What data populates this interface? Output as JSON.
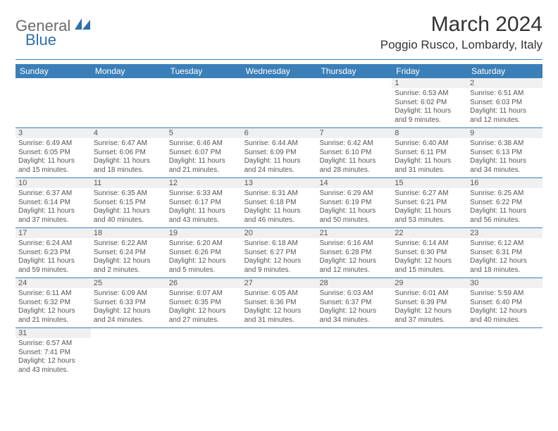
{
  "logo": {
    "part1": "General",
    "part2": "Blue"
  },
  "title": "March 2024",
  "location": "Poggio Rusco, Lombardy, Italy",
  "colors": {
    "header_bg": "#3b7fb8",
    "header_text": "#ffffff",
    "daynum_bg": "#f0f0f0",
    "rule": "#3b7fb8",
    "text": "#555555",
    "logo_grey": "#6b6b6b",
    "logo_blue": "#2f6fa8"
  },
  "typography": {
    "title_fontsize": 30,
    "location_fontsize": 17,
    "dayhead_fontsize": 12,
    "body_fontsize": 10,
    "daynum_fontsize": 11
  },
  "day_headers": [
    "Sunday",
    "Monday",
    "Tuesday",
    "Wednesday",
    "Thursday",
    "Friday",
    "Saturday"
  ],
  "weeks": [
    [
      {
        "n": "",
        "sunrise": "",
        "sunset": "",
        "daylight": ""
      },
      {
        "n": "",
        "sunrise": "",
        "sunset": "",
        "daylight": ""
      },
      {
        "n": "",
        "sunrise": "",
        "sunset": "",
        "daylight": ""
      },
      {
        "n": "",
        "sunrise": "",
        "sunset": "",
        "daylight": ""
      },
      {
        "n": "",
        "sunrise": "",
        "sunset": "",
        "daylight": ""
      },
      {
        "n": "1",
        "sunrise": "Sunrise: 6:53 AM",
        "sunset": "Sunset: 6:02 PM",
        "daylight": "Daylight: 11 hours and 9 minutes."
      },
      {
        "n": "2",
        "sunrise": "Sunrise: 6:51 AM",
        "sunset": "Sunset: 6:03 PM",
        "daylight": "Daylight: 11 hours and 12 minutes."
      }
    ],
    [
      {
        "n": "3",
        "sunrise": "Sunrise: 6:49 AM",
        "sunset": "Sunset: 6:05 PM",
        "daylight": "Daylight: 11 hours and 15 minutes."
      },
      {
        "n": "4",
        "sunrise": "Sunrise: 6:47 AM",
        "sunset": "Sunset: 6:06 PM",
        "daylight": "Daylight: 11 hours and 18 minutes."
      },
      {
        "n": "5",
        "sunrise": "Sunrise: 6:46 AM",
        "sunset": "Sunset: 6:07 PM",
        "daylight": "Daylight: 11 hours and 21 minutes."
      },
      {
        "n": "6",
        "sunrise": "Sunrise: 6:44 AM",
        "sunset": "Sunset: 6:09 PM",
        "daylight": "Daylight: 11 hours and 24 minutes."
      },
      {
        "n": "7",
        "sunrise": "Sunrise: 6:42 AM",
        "sunset": "Sunset: 6:10 PM",
        "daylight": "Daylight: 11 hours and 28 minutes."
      },
      {
        "n": "8",
        "sunrise": "Sunrise: 6:40 AM",
        "sunset": "Sunset: 6:11 PM",
        "daylight": "Daylight: 11 hours and 31 minutes."
      },
      {
        "n": "9",
        "sunrise": "Sunrise: 6:38 AM",
        "sunset": "Sunset: 6:13 PM",
        "daylight": "Daylight: 11 hours and 34 minutes."
      }
    ],
    [
      {
        "n": "10",
        "sunrise": "Sunrise: 6:37 AM",
        "sunset": "Sunset: 6:14 PM",
        "daylight": "Daylight: 11 hours and 37 minutes."
      },
      {
        "n": "11",
        "sunrise": "Sunrise: 6:35 AM",
        "sunset": "Sunset: 6:15 PM",
        "daylight": "Daylight: 11 hours and 40 minutes."
      },
      {
        "n": "12",
        "sunrise": "Sunrise: 6:33 AM",
        "sunset": "Sunset: 6:17 PM",
        "daylight": "Daylight: 11 hours and 43 minutes."
      },
      {
        "n": "13",
        "sunrise": "Sunrise: 6:31 AM",
        "sunset": "Sunset: 6:18 PM",
        "daylight": "Daylight: 11 hours and 46 minutes."
      },
      {
        "n": "14",
        "sunrise": "Sunrise: 6:29 AM",
        "sunset": "Sunset: 6:19 PM",
        "daylight": "Daylight: 11 hours and 50 minutes."
      },
      {
        "n": "15",
        "sunrise": "Sunrise: 6:27 AM",
        "sunset": "Sunset: 6:21 PM",
        "daylight": "Daylight: 11 hours and 53 minutes."
      },
      {
        "n": "16",
        "sunrise": "Sunrise: 6:25 AM",
        "sunset": "Sunset: 6:22 PM",
        "daylight": "Daylight: 11 hours and 56 minutes."
      }
    ],
    [
      {
        "n": "17",
        "sunrise": "Sunrise: 6:24 AM",
        "sunset": "Sunset: 6:23 PM",
        "daylight": "Daylight: 11 hours and 59 minutes."
      },
      {
        "n": "18",
        "sunrise": "Sunrise: 6:22 AM",
        "sunset": "Sunset: 6:24 PM",
        "daylight": "Daylight: 12 hours and 2 minutes."
      },
      {
        "n": "19",
        "sunrise": "Sunrise: 6:20 AM",
        "sunset": "Sunset: 6:26 PM",
        "daylight": "Daylight: 12 hours and 5 minutes."
      },
      {
        "n": "20",
        "sunrise": "Sunrise: 6:18 AM",
        "sunset": "Sunset: 6:27 PM",
        "daylight": "Daylight: 12 hours and 9 minutes."
      },
      {
        "n": "21",
        "sunrise": "Sunrise: 6:16 AM",
        "sunset": "Sunset: 6:28 PM",
        "daylight": "Daylight: 12 hours and 12 minutes."
      },
      {
        "n": "22",
        "sunrise": "Sunrise: 6:14 AM",
        "sunset": "Sunset: 6:30 PM",
        "daylight": "Daylight: 12 hours and 15 minutes."
      },
      {
        "n": "23",
        "sunrise": "Sunrise: 6:12 AM",
        "sunset": "Sunset: 6:31 PM",
        "daylight": "Daylight: 12 hours and 18 minutes."
      }
    ],
    [
      {
        "n": "24",
        "sunrise": "Sunrise: 6:11 AM",
        "sunset": "Sunset: 6:32 PM",
        "daylight": "Daylight: 12 hours and 21 minutes."
      },
      {
        "n": "25",
        "sunrise": "Sunrise: 6:09 AM",
        "sunset": "Sunset: 6:33 PM",
        "daylight": "Daylight: 12 hours and 24 minutes."
      },
      {
        "n": "26",
        "sunrise": "Sunrise: 6:07 AM",
        "sunset": "Sunset: 6:35 PM",
        "daylight": "Daylight: 12 hours and 27 minutes."
      },
      {
        "n": "27",
        "sunrise": "Sunrise: 6:05 AM",
        "sunset": "Sunset: 6:36 PM",
        "daylight": "Daylight: 12 hours and 31 minutes."
      },
      {
        "n": "28",
        "sunrise": "Sunrise: 6:03 AM",
        "sunset": "Sunset: 6:37 PM",
        "daylight": "Daylight: 12 hours and 34 minutes."
      },
      {
        "n": "29",
        "sunrise": "Sunrise: 6:01 AM",
        "sunset": "Sunset: 6:39 PM",
        "daylight": "Daylight: 12 hours and 37 minutes."
      },
      {
        "n": "30",
        "sunrise": "Sunrise: 5:59 AM",
        "sunset": "Sunset: 6:40 PM",
        "daylight": "Daylight: 12 hours and 40 minutes."
      }
    ],
    [
      {
        "n": "31",
        "sunrise": "Sunrise: 6:57 AM",
        "sunset": "Sunset: 7:41 PM",
        "daylight": "Daylight: 12 hours and 43 minutes."
      },
      {
        "n": "",
        "sunrise": "",
        "sunset": "",
        "daylight": ""
      },
      {
        "n": "",
        "sunrise": "",
        "sunset": "",
        "daylight": ""
      },
      {
        "n": "",
        "sunrise": "",
        "sunset": "",
        "daylight": ""
      },
      {
        "n": "",
        "sunrise": "",
        "sunset": "",
        "daylight": ""
      },
      {
        "n": "",
        "sunrise": "",
        "sunset": "",
        "daylight": ""
      },
      {
        "n": "",
        "sunrise": "",
        "sunset": "",
        "daylight": ""
      }
    ]
  ]
}
